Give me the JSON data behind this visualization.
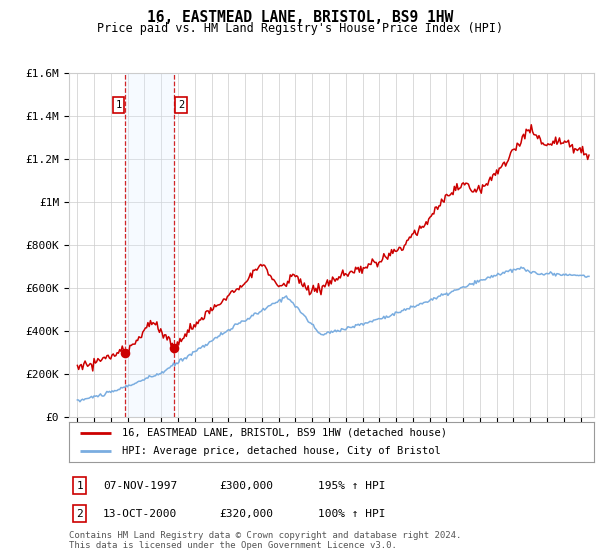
{
  "title": "16, EASTMEAD LANE, BRISTOL, BS9 1HW",
  "subtitle": "Price paid vs. HM Land Registry's House Price Index (HPI)",
  "ylim": [
    0,
    1600000
  ],
  "yticks": [
    0,
    200000,
    400000,
    600000,
    800000,
    1000000,
    1200000,
    1400000,
    1600000
  ],
  "ytick_labels": [
    "£0",
    "£200K",
    "£400K",
    "£600K",
    "£800K",
    "£1M",
    "£1.2M",
    "£1.4M",
    "£1.6M"
  ],
  "xmin": 1994.5,
  "xmax": 2025.8,
  "purchase1": {
    "date_str": "07-NOV-1997",
    "year": 1997.85,
    "price": 300000
  },
  "purchase2": {
    "date_str": "13-OCT-2000",
    "year": 2000.78,
    "price": 320000
  },
  "legend_line1": "16, EASTMEAD LANE, BRISTOL, BS9 1HW (detached house)",
  "legend_line2": "HPI: Average price, detached house, City of Bristol",
  "footer": "Contains HM Land Registry data © Crown copyright and database right 2024.\nThis data is licensed under the Open Government Licence v3.0.",
  "red_color": "#cc0000",
  "blue_color": "#7aade0",
  "shade_color": "#ddeeff",
  "grid_color": "#cccccc",
  "background_color": "#ffffff",
  "label1_text": "1",
  "label2_text": "2",
  "row1_num": "1",
  "row1_date": "07-NOV-1997",
  "row1_price": "£300,000",
  "row1_hpi": "195% ↑ HPI",
  "row2_num": "2",
  "row2_date": "13-OCT-2000",
  "row2_price": "£320,000",
  "row2_hpi": "100% ↑ HPI"
}
